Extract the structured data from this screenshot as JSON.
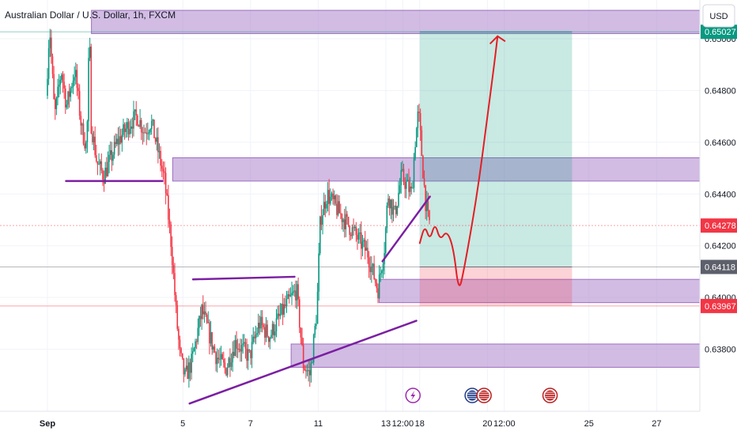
{
  "chart_data": {
    "type": "candlestick",
    "title": "Australian Dollar / U.S. Dollar, 1h, FXCM",
    "currency": "USD",
    "ylim": [
      0.6356,
      0.6515
    ],
    "y_ticks": [
      0.638,
      0.64,
      0.642,
      0.644,
      0.646,
      0.648,
      0.65
    ],
    "y_tick_labels": [
      "0.63800",
      "0.64000",
      "0.64200",
      "0.64400",
      "0.64600",
      "0.64800",
      "0.65000"
    ],
    "x_tick_labels": [
      {
        "label": "Sep",
        "day": 0
      },
      {
        "label": "5",
        "day": 4
      },
      {
        "label": "7",
        "day": 6
      },
      {
        "label": "11",
        "day": 8
      },
      {
        "label": "13",
        "day": 10
      },
      {
        "label": "12:00",
        "day": 10.5
      },
      {
        "label": "18",
        "day": 11
      },
      {
        "label": "20",
        "day": 13
      },
      {
        "label": "12:00",
        "day": 13.5
      },
      {
        "label": "25",
        "day": 16
      },
      {
        "label": "27",
        "day": 18
      }
    ],
    "price_badges": [
      {
        "label": "0.65027",
        "value": 0.65027,
        "color": "#089981"
      },
      {
        "label": "0.64278",
        "value": 0.64278,
        "color": "#f23645"
      },
      {
        "label": "0.64118",
        "value": 0.64118,
        "color": "#5d606b"
      },
      {
        "label": "0.63967",
        "value": 0.63967,
        "color": "#f23645"
      }
    ],
    "zones": [
      {
        "x0": 1.3,
        "x1": 19.5,
        "y0": 0.6502,
        "y1": 0.6511,
        "color": "#b48fd0"
      },
      {
        "x0": 3.7,
        "x1": 19.5,
        "y0": 0.6445,
        "y1": 0.6454,
        "color": "#b48fd0"
      },
      {
        "x0": 9.8,
        "x1": 19.5,
        "y0": 0.6398,
        "y1": 0.6407,
        "color": "#b48fd0"
      },
      {
        "x0": 7.2,
        "x1": 19.5,
        "y0": 0.6373,
        "y1": 0.6382,
        "color": "#b48fd0"
      }
    ],
    "position": {
      "x0": 11.0,
      "x1": 15.5,
      "entry": 0.64118,
      "target": 0.65027,
      "stop": 0.63967
    },
    "trendlines": [
      {
        "x0": 0.55,
        "y0": 0.6445,
        "x1": 3.4,
        "y1": 0.6445
      },
      {
        "x0": 4.3,
        "y0": 0.6407,
        "x1": 7.3,
        "y1": 0.6408
      },
      {
        "x0": 4.2,
        "y0": 0.6359,
        "x1": 10.9,
        "y1": 0.6391
      },
      {
        "x0": 9.9,
        "y0": 0.6414,
        "x1": 11.3,
        "y1": 0.6439
      }
    ],
    "projection": [
      [
        11.0,
        0.6421
      ],
      [
        11.15,
        0.6428
      ],
      [
        11.3,
        0.6422
      ],
      [
        11.45,
        0.6429
      ],
      [
        11.6,
        0.6422
      ],
      [
        11.8,
        0.6426
      ],
      [
        12.0,
        0.6419
      ],
      [
        12.15,
        0.6402
      ],
      [
        12.3,
        0.641
      ],
      [
        12.7,
        0.644
      ],
      [
        13.0,
        0.647
      ],
      [
        13.2,
        0.649
      ],
      [
        13.3,
        0.6501
      ]
    ],
    "events": [
      {
        "day": 10.8,
        "icon": "lightning-icon",
        "color": "#9c27b0"
      },
      {
        "day": 12.55,
        "icon": "au-flag-icon",
        "color": "#1e3a8a"
      },
      {
        "day": 12.9,
        "icon": "us-flag-icon",
        "color": "#b91c1c"
      },
      {
        "day": 14.85,
        "icon": "us-flag-icon",
        "color": "#b91c1c"
      }
    ],
    "series_keypoints": [
      [
        0,
        0.6478
      ],
      [
        0.1,
        0.6505
      ],
      [
        0.25,
        0.647
      ],
      [
        0.45,
        0.6488
      ],
      [
        0.6,
        0.6474
      ],
      [
        0.85,
        0.6488
      ],
      [
        1.05,
        0.6465
      ],
      [
        1.2,
        0.6458
      ],
      [
        1.28,
        0.6505
      ],
      [
        1.32,
        0.6468
      ],
      [
        1.5,
        0.6452
      ],
      [
        1.7,
        0.6447
      ],
      [
        2.1,
        0.646
      ],
      [
        2.5,
        0.6468
      ],
      [
        2.7,
        0.647
      ],
      [
        2.9,
        0.6464
      ],
      [
        3.1,
        0.6468
      ],
      [
        3.3,
        0.6457
      ],
      [
        3.5,
        0.6445
      ],
      [
        3.7,
        0.642
      ],
      [
        3.85,
        0.6392
      ],
      [
        3.95,
        0.6378
      ],
      [
        4.1,
        0.6369
      ],
      [
        4.3,
        0.6375
      ],
      [
        4.6,
        0.6395
      ],
      [
        5.0,
        0.6378
      ],
      [
        5.3,
        0.6372
      ],
      [
        5.6,
        0.6383
      ],
      [
        6.0,
        0.6377
      ],
      [
        6.3,
        0.639
      ],
      [
        6.6,
        0.6385
      ],
      [
        7.0,
        0.6395
      ],
      [
        7.4,
        0.6403
      ],
      [
        7.6,
        0.6374
      ],
      [
        7.8,
        0.637
      ],
      [
        8.0,
        0.6395
      ],
      [
        8.1,
        0.643
      ],
      [
        8.3,
        0.644
      ],
      [
        8.7,
        0.6432
      ],
      [
        9.1,
        0.6425
      ],
      [
        9.5,
        0.6417
      ],
      [
        9.8,
        0.6403
      ],
      [
        10.0,
        0.642
      ],
      [
        10.1,
        0.644
      ],
      [
        10.3,
        0.6432
      ],
      [
        10.5,
        0.6447
      ],
      [
        10.8,
        0.644
      ],
      [
        10.9,
        0.646
      ],
      [
        11.0,
        0.6472
      ],
      [
        11.1,
        0.6455
      ],
      [
        11.2,
        0.6438
      ],
      [
        11.3,
        0.6429
      ]
    ]
  }
}
